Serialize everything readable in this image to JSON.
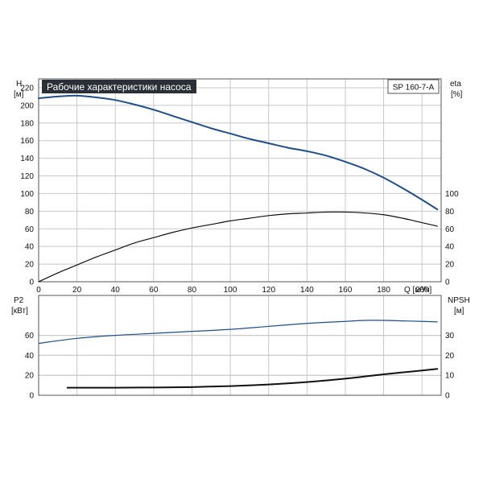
{
  "chart_data": [
    {
      "type": "line",
      "title": "Рабочие характеристики насоса",
      "model_label": "SP 160-7-A",
      "xlabel": "Q [м³/ч]",
      "xlim": [
        0,
        210
      ],
      "x_ticks": [
        0,
        20,
        40,
        60,
        80,
        100,
        120,
        140,
        160,
        180,
        200
      ],
      "left_axis": {
        "name": "H",
        "unit": "[м]",
        "ylim": [
          0,
          230
        ],
        "ticks": [
          0,
          20,
          40,
          60,
          80,
          100,
          120,
          140,
          160,
          180,
          200,
          220
        ]
      },
      "right_axis": {
        "name": "eta",
        "unit": "[%]",
        "ylim": [
          0,
          230
        ],
        "ticks": [
          0,
          20,
          40,
          60,
          80,
          100
        ]
      },
      "grid": true,
      "series": [
        {
          "axis": "left",
          "color": "#1f4e8c",
          "x": [
            0,
            10,
            20,
            30,
            40,
            50,
            60,
            70,
            80,
            90,
            100,
            110,
            120,
            130,
            140,
            150,
            160,
            170,
            180,
            190,
            200,
            208
          ],
          "y": [
            208,
            210,
            211,
            209,
            206,
            201,
            195,
            188,
            181,
            174,
            168,
            162,
            157,
            152,
            148,
            143,
            136,
            128,
            118,
            106,
            93,
            82
          ]
        },
        {
          "axis": "right",
          "color": "#111111",
          "x": [
            0,
            10,
            20,
            30,
            40,
            50,
            60,
            70,
            80,
            90,
            100,
            110,
            120,
            130,
            140,
            150,
            160,
            170,
            180,
            190,
            200,
            208
          ],
          "y": [
            0,
            10,
            19,
            28,
            36,
            44,
            50,
            56,
            61,
            65,
            69,
            72,
            75,
            77,
            78,
            79,
            79,
            78,
            76,
            72,
            67,
            63
          ]
        }
      ]
    },
    {
      "type": "line",
      "xlim": [
        0,
        210
      ],
      "left_axis": {
        "name": "P2",
        "unit": "[кВт]",
        "ylim": [
          0,
          100
        ],
        "ticks": [
          0,
          20,
          40,
          60
        ]
      },
      "right_axis": {
        "name": "NPSH",
        "unit": "[м]",
        "ylim": [
          0,
          50
        ],
        "ticks": [
          0,
          10,
          20,
          30
        ]
      },
      "grid": true,
      "series": [
        {
          "axis": "left",
          "color": "#1f4e8c",
          "x": [
            0,
            20,
            40,
            60,
            80,
            100,
            120,
            140,
            160,
            170,
            180,
            190,
            200,
            208
          ],
          "y": [
            52,
            57,
            60,
            62,
            64,
            66,
            69,
            72,
            74,
            75,
            75,
            74.5,
            74,
            73.5
          ]
        },
        {
          "axis": "right",
          "color": "#111111",
          "x": [
            15,
            40,
            60,
            80,
            100,
            120,
            140,
            160,
            180,
            200,
            208
          ],
          "y": [
            3.8,
            3.8,
            3.9,
            4.1,
            4.6,
            5.4,
            6.6,
            8.3,
            10.5,
            12.4,
            13.2
          ]
        }
      ]
    }
  ]
}
